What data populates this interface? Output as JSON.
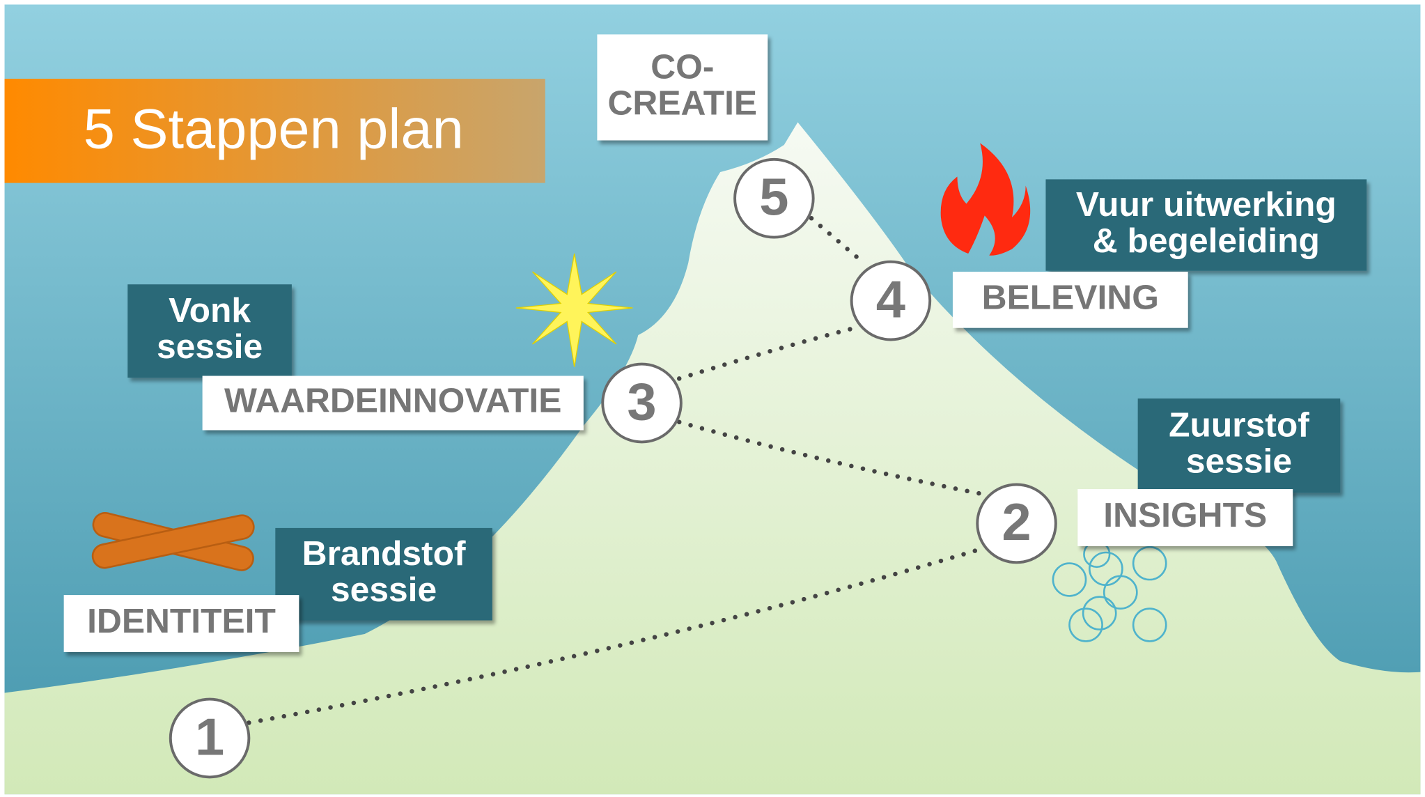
{
  "title": "5 Stappen plan",
  "steps": [
    {
      "number": "1",
      "label_lines": [
        "IDENTITEIT"
      ],
      "session_lines": [
        "Brandstof",
        "sessie"
      ]
    },
    {
      "number": "2",
      "label_lines": [
        "INSIGHTS"
      ],
      "session_lines": [
        "Zuurstof",
        "sessie"
      ]
    },
    {
      "number": "3",
      "label_lines": [
        "WAARDEINNOVATIE"
      ],
      "session_lines": [
        "Vonk",
        "sessie"
      ]
    },
    {
      "number": "4",
      "label_lines": [
        "BELEVING"
      ],
      "session_lines": [
        "Vuur uitwerking",
        "& begeleiding"
      ]
    },
    {
      "number": "5",
      "label_lines": [
        "CO-",
        "CREATIE"
      ],
      "session_lines": []
    }
  ]
}
